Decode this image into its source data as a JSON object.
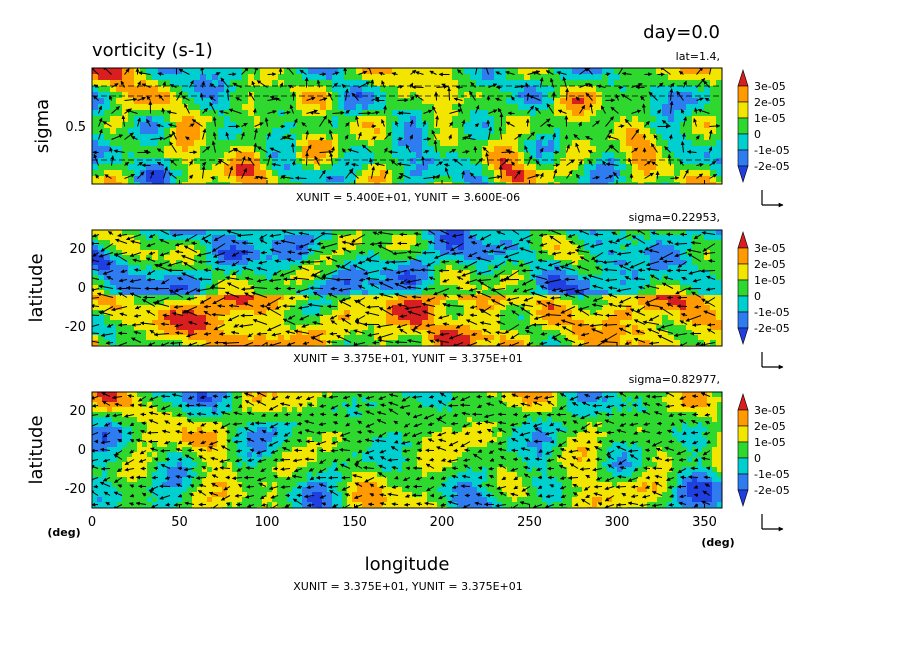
{
  "chart_data": {
    "type": "heatmap",
    "title": "vorticity (s-1)",
    "time_label": "day=0.0",
    "colorbar": {
      "labels": [
        "3e-05",
        "2e-05",
        "1e-05",
        "0",
        "-1e-05",
        "-2e-05"
      ],
      "colors": [
        "#d81e1e",
        "#ff9a00",
        "#f2e600",
        "#2ed82e",
        "#00cfcf",
        "#2e7cf0",
        "#1f3fe0"
      ]
    },
    "panels": [
      {
        "id": "sigma-lon",
        "header": "lat=1.4,",
        "ylabel": "sigma",
        "yticks": [
          "0.5"
        ],
        "xlim": [
          0,
          360
        ],
        "ylim": [
          0,
          1
        ],
        "units_text": "XUNIT = 5.400E+01, YUNIT = 3.600E-06"
      },
      {
        "id": "lat-lon-upper",
        "header": "sigma=0.22953,",
        "ylabel": "latitude",
        "yticks": [
          "20",
          "0",
          "-20"
        ],
        "xlim": [
          0,
          360
        ],
        "ylim": [
          -30,
          30
        ],
        "units_text": "XUNIT = 3.375E+01, YUNIT = 3.375E+01"
      },
      {
        "id": "lat-lon-lower",
        "header": "sigma=0.82977,",
        "ylabel": "latitude",
        "yticks": [
          "20",
          "0",
          "-20"
        ],
        "xlim": [
          0,
          360
        ],
        "ylim": [
          -30,
          30
        ],
        "units_text": "XUNIT = 3.375E+01, YUNIT = 3.375E+01"
      }
    ],
    "xaxis": {
      "label": "longitude",
      "ticks": [
        "0",
        "50",
        "100",
        "150",
        "200",
        "250",
        "300",
        "350"
      ],
      "tick_values": [
        0,
        50,
        100,
        150,
        200,
        250,
        300,
        350
      ],
      "unit_left": "(deg)",
      "unit_right": "(deg)"
    }
  }
}
